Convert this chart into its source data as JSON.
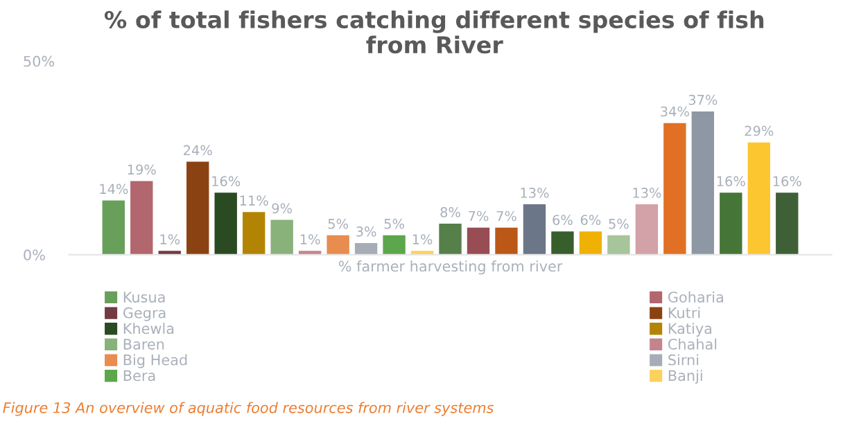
{
  "chart_data": {
    "type": "bar",
    "title": "% of total fishers catching different species of fish\nfrom River",
    "categories": [
      "% farmer harvesting from river"
    ],
    "series": [
      {
        "name": "Kusua",
        "color": "#689f5a",
        "values": [
          14
        ],
        "value_labels": [
          "14%"
        ]
      },
      {
        "name": "Goharia",
        "color": "#b2666e",
        "values": [
          19
        ],
        "value_labels": [
          "19%"
        ]
      },
      {
        "name": "Gegra",
        "color": "#733a42",
        "values": [
          1
        ],
        "value_labels": [
          "1%"
        ]
      },
      {
        "name": "Kutri",
        "color": "#8b4212",
        "values": [
          24
        ],
        "value_labels": [
          "24%"
        ]
      },
      {
        "name": "Khewla",
        "color": "#2a4a22",
        "values": [
          16
        ],
        "value_labels": [
          "16%"
        ]
      },
      {
        "name": "Katiya",
        "color": "#b38404",
        "values": [
          11
        ],
        "value_labels": [
          "11%"
        ]
      },
      {
        "name": "Baren",
        "color": "#88b27a",
        "values": [
          9
        ],
        "value_labels": [
          "9%"
        ]
      },
      {
        "name": "Chahal",
        "color": "#c4848c",
        "values": [
          1
        ],
        "value_labels": [
          "1%"
        ]
      },
      {
        "name": "Big Head",
        "color": "#e88c50",
        "values": [
          5
        ],
        "value_labels": [
          "5%"
        ]
      },
      {
        "name": "Sirni",
        "color": "#a6adb6",
        "values": [
          3
        ],
        "value_labels": [
          "3%"
        ]
      },
      {
        "name": "Bera",
        "color": "#5ca64c",
        "values": [
          5
        ],
        "value_labels": [
          "5%"
        ]
      },
      {
        "name": "Banji",
        "color": "#fcd25c",
        "values": [
          1
        ],
        "value_labels": [
          "1%"
        ]
      },
      {
        "color": "#55804a",
        "values": [
          8
        ],
        "value_labels": [
          "8%"
        ]
      },
      {
        "color": "#984c54",
        "values": [
          7
        ],
        "value_labels": [
          "7%"
        ]
      },
      {
        "color": "#bb5818",
        "values": [
          7
        ],
        "value_labels": [
          "7%"
        ]
      },
      {
        "color": "#6b7688",
        "values": [
          13
        ],
        "value_labels": [
          "13%"
        ]
      },
      {
        "color": "#365f2c",
        "values": [
          6
        ],
        "value_labels": [
          "6%"
        ]
      },
      {
        "color": "#efb204",
        "values": [
          6
        ],
        "value_labels": [
          "6%"
        ]
      },
      {
        "color": "#a6c59a",
        "values": [
          5
        ],
        "value_labels": [
          "5%"
        ]
      },
      {
        "color": "#d3a1a8",
        "values": [
          13
        ],
        "value_labels": [
          "13%"
        ]
      },
      {
        "color": "#e27024",
        "values": [
          34
        ],
        "value_labels": [
          "34%"
        ]
      },
      {
        "color": "#8e97a4",
        "values": [
          37
        ],
        "value_labels": [
          "37%"
        ]
      },
      {
        "color": "#457638",
        "values": [
          16
        ],
        "value_labels": [
          "16%"
        ]
      },
      {
        "color": "#fcc630",
        "values": [
          29
        ],
        "value_labels": [
          "29%"
        ]
      },
      {
        "color": "#3f6036",
        "values": [
          16
        ],
        "value_labels": [
          "16%"
        ]
      }
    ],
    "ylim": [
      0,
      50
    ],
    "yticks": [
      {
        "value": 0,
        "label": "0%"
      },
      {
        "value": 50,
        "label": "50%"
      }
    ],
    "legend": "bottom",
    "annotations": [
      "Figure 13 An overview of aquatic food resources from river systems"
    ]
  }
}
